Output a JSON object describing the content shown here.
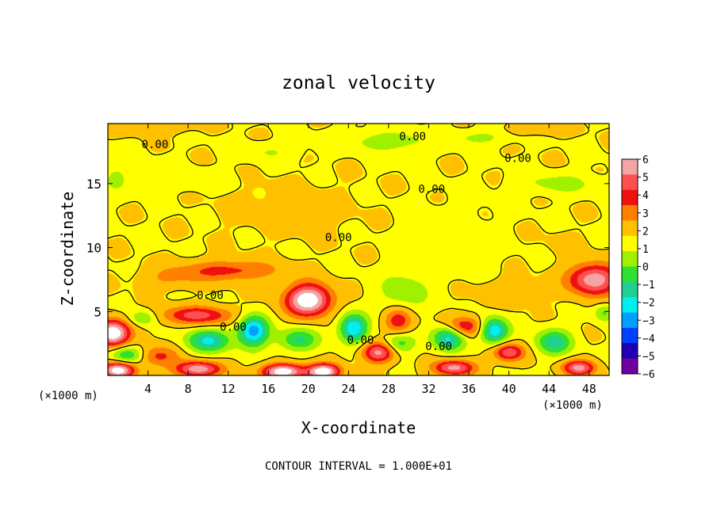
{
  "chart_data": {
    "type": "heatmap",
    "title": "zonal velocity",
    "xlabel": "X-coordinate",
    "ylabel": "Z-coordinate",
    "xunits_left": "(×1000 m)",
    "xunits_right": "(×1000 m)",
    "xlim": [
      0,
      50
    ],
    "ylim": [
      0,
      19.7
    ],
    "xticks": [
      4,
      8,
      12,
      16,
      20,
      24,
      28,
      32,
      36,
      40,
      44,
      48
    ],
    "xtick_labels": [
      "4",
      "8",
      "12",
      "16",
      "20",
      "24",
      "28",
      "32",
      "36",
      "40",
      "44",
      "48"
    ],
    "yticks": [
      5,
      10,
      15
    ],
    "ytick_labels": [
      "5",
      "10",
      "15"
    ],
    "footer": "CONTOUR INTERVAL = 1.000E+01",
    "colorbar": {
      "levels": [
        6,
        5,
        4,
        3,
        2,
        1,
        0,
        -1,
        -2,
        -3,
        -4,
        -5,
        -6
      ],
      "labels": [
        "6",
        "5",
        "4",
        "3",
        "2",
        "1",
        "0",
        "−1",
        "−2",
        "−3",
        "−4",
        "−5",
        "−6"
      ],
      "colors": [
        "#f4a4a4",
        "#ff5050",
        "#f01010",
        "#ff8000",
        "#ffc000",
        "#ffff00",
        "#a0f000",
        "#30e030",
        "#20d090",
        "#00f0f0",
        "#00a0ff",
        "#0040ff",
        "#2000b0",
        "#7000a0"
      ]
    },
    "contour_labels": [
      {
        "text": "0.00",
        "x": 4.7,
        "y": 18.1
      },
      {
        "text": "0.00",
        "x": 30.4,
        "y": 18.7
      },
      {
        "text": "0.00",
        "x": 40.9,
        "y": 17.0
      },
      {
        "text": "0.00",
        "x": 32.3,
        "y": 14.6
      },
      {
        "text": "0.00",
        "x": 23.0,
        "y": 10.8
      },
      {
        "text": "0.00",
        "x": 10.2,
        "y": 6.3
      },
      {
        "text": "0.00",
        "x": 12.5,
        "y": 3.8
      },
      {
        "text": "0.00",
        "x": 25.2,
        "y": 2.8
      },
      {
        "text": "0.00",
        "x": 33.0,
        "y": 2.3
      }
    ],
    "features": [
      {
        "x": 20.0,
        "y": 5.9,
        "v": 6.5,
        "sx": 2.2,
        "sy": 1.2
      },
      {
        "x": 0.5,
        "y": 3.3,
        "v": 6.5,
        "sx": 1.6,
        "sy": 1.0
      },
      {
        "x": 48.5,
        "y": 7.5,
        "v": 5.0,
        "sx": 2.5,
        "sy": 1.2
      },
      {
        "x": 17.5,
        "y": 0.3,
        "v": 6.3,
        "sx": 2.0,
        "sy": 0.6
      },
      {
        "x": 21.5,
        "y": 0.3,
        "v": 6.3,
        "sx": 1.6,
        "sy": 0.6
      },
      {
        "x": 9.0,
        "y": 0.5,
        "v": 5.0,
        "sx": 2.2,
        "sy": 0.6
      },
      {
        "x": 1.0,
        "y": 0.4,
        "v": 6.0,
        "sx": 1.6,
        "sy": 0.6
      },
      {
        "x": 34.5,
        "y": 0.6,
        "v": 4.5,
        "sx": 2.0,
        "sy": 0.6
      },
      {
        "x": 47.0,
        "y": 0.6,
        "v": 4.5,
        "sx": 1.6,
        "sy": 0.6
      },
      {
        "x": 27.0,
        "y": 1.8,
        "v": 4.5,
        "sx": 1.6,
        "sy": 0.8
      },
      {
        "x": 40.0,
        "y": 1.8,
        "v": 4.0,
        "sx": 1.5,
        "sy": 0.7
      },
      {
        "x": 9.0,
        "y": 4.7,
        "v": 3.5,
        "sx": 3.5,
        "sy": 0.7
      },
      {
        "x": 12.0,
        "y": 8.2,
        "v": 2.5,
        "sx": 5.0,
        "sy": 0.8
      },
      {
        "x": 35.5,
        "y": 3.8,
        "v": 3.5,
        "sx": 2.0,
        "sy": 0.8
      },
      {
        "x": 29.0,
        "y": 4.3,
        "v": 3.0,
        "sx": 1.4,
        "sy": 1.0
      },
      {
        "x": 5.0,
        "y": 1.5,
        "v": 2.5,
        "sx": 2.0,
        "sy": 0.8
      },
      {
        "x": 14.5,
        "y": 3.5,
        "v": -5.5,
        "sx": 1.5,
        "sy": 1.2
      },
      {
        "x": 24.5,
        "y": 3.7,
        "v": -5.0,
        "sx": 1.4,
        "sy": 1.1
      },
      {
        "x": 10.0,
        "y": 2.7,
        "v": -4.0,
        "sx": 2.2,
        "sy": 0.9
      },
      {
        "x": 34.0,
        "y": 3.0,
        "v": -4.5,
        "sx": 1.6,
        "sy": 1.0
      },
      {
        "x": 38.5,
        "y": 3.5,
        "v": -5.0,
        "sx": 1.4,
        "sy": 1.0
      },
      {
        "x": 44.5,
        "y": 2.6,
        "v": -3.5,
        "sx": 1.8,
        "sy": 1.0
      },
      {
        "x": 19.0,
        "y": 2.8,
        "v": -3.0,
        "sx": 2.0,
        "sy": 0.9
      },
      {
        "x": 29.0,
        "y": 2.5,
        "v": -2.5,
        "sx": 1.6,
        "sy": 0.8
      },
      {
        "x": 2.0,
        "y": 1.6,
        "v": -3.0,
        "sx": 1.6,
        "sy": 0.7
      },
      {
        "x": 3.5,
        "y": 4.5,
        "v": -2.0,
        "sx": 1.3,
        "sy": 0.6
      },
      {
        "x": 49.5,
        "y": 4.9,
        "v": -2.0,
        "sx": 1.0,
        "sy": 0.7
      },
      {
        "x": 29.5,
        "y": 6.5,
        "v": -1.6,
        "sx": 2.5,
        "sy": 1.6
      },
      {
        "x": 34.0,
        "y": 10.5,
        "v": -0.6,
        "sx": 4.0,
        "sy": 2.5
      },
      {
        "x": 28.0,
        "y": 18.3,
        "v": -1.6,
        "sx": 4.0,
        "sy": 0.8
      },
      {
        "x": 37.0,
        "y": 18.6,
        "v": -1.2,
        "sx": 3.0,
        "sy": 0.6
      },
      {
        "x": 45.0,
        "y": 15.0,
        "v": -1.3,
        "sx": 4.0,
        "sy": 0.8
      },
      {
        "x": 8.0,
        "y": 15.3,
        "v": -0.8,
        "sx": 4.0,
        "sy": 0.8
      },
      {
        "x": 16.0,
        "y": 17.5,
        "v": -0.9,
        "sx": 3.0,
        "sy": 0.7
      },
      {
        "x": 0.8,
        "y": 15.5,
        "v": -1.0,
        "sx": 1.5,
        "sy": 1.3
      },
      {
        "x": 4.0,
        "y": 19.4,
        "v": 1.1,
        "sx": 4.0,
        "sy": 0.5
      },
      {
        "x": 43.0,
        "y": 19.3,
        "v": 0.9,
        "sx": 3.0,
        "sy": 0.5
      },
      {
        "x": 18.0,
        "y": 13.0,
        "v": 0.5,
        "sx": 6.0,
        "sy": 2.0
      },
      {
        "x": 45.5,
        "y": 10.3,
        "v": 0.3,
        "sx": 2.0,
        "sy": 1.0
      },
      {
        "x": 6.0,
        "y": 7.5,
        "v": 1.0,
        "sx": 3.0,
        "sy": 0.8
      },
      {
        "x": 40.0,
        "y": 6.5,
        "v": 0.9,
        "sx": 3.0,
        "sy": 1.0
      }
    ]
  }
}
